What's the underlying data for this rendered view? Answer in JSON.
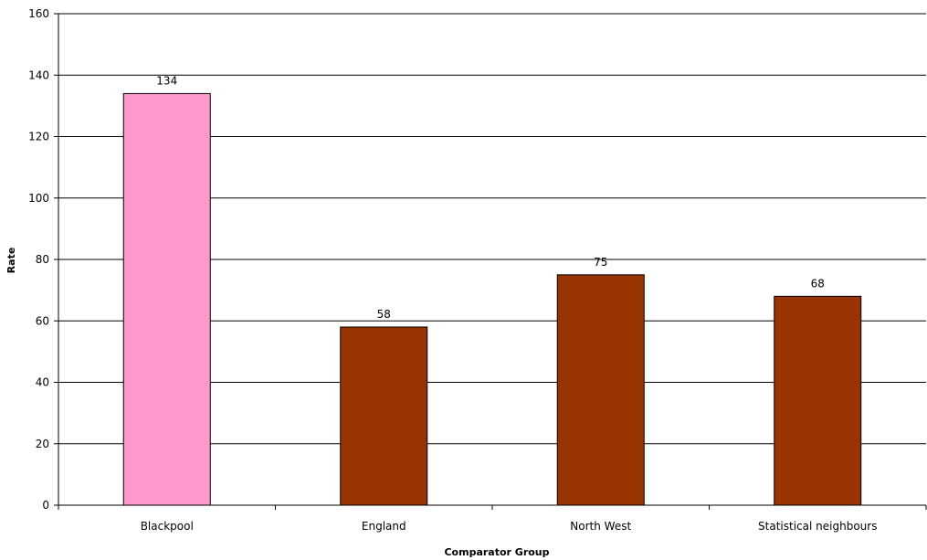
{
  "chart_data": {
    "type": "bar",
    "title": "",
    "xlabel": "Comparator Group",
    "ylabel": "Rate",
    "categories": [
      "Blackpool",
      "England",
      "North West",
      "Statistical neighbours"
    ],
    "values": [
      134,
      58,
      75,
      68
    ],
    "data_labels": [
      "134",
      "58",
      "75",
      "68"
    ],
    "bar_colors": [
      "#ff99cc",
      "#993300",
      "#993300",
      "#993300"
    ],
    "ylim": [
      0,
      160
    ],
    "yticks": [
      0,
      20,
      40,
      60,
      80,
      100,
      120,
      140,
      160
    ],
    "grid": true,
    "legend": "none"
  }
}
